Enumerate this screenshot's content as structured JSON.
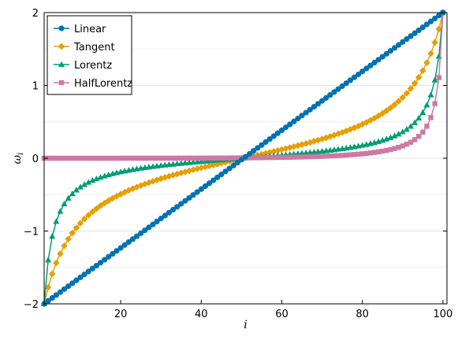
{
  "chart_data": {
    "type": "line",
    "title": "",
    "xlabel": "i",
    "ylabel": "ω",
    "ylabel_subscript": "i",
    "xlim": [
      1,
      101
    ],
    "ylim": [
      -2,
      2
    ],
    "xticks": [
      20,
      40,
      60,
      80,
      100
    ],
    "yticks": [
      -2,
      -1,
      0,
      1,
      2
    ],
    "grid": true,
    "legend_position": "top-left",
    "n_points": 100,
    "series": [
      {
        "name": "Linear",
        "color": "#0072B2",
        "marker": "circle",
        "formula": "linear from -2 to 2"
      },
      {
        "name": "Tangent",
        "color": "#E69F00",
        "marker": "diamond",
        "formula": "tan-spaced from -2 to 2"
      },
      {
        "name": "Lorentz",
        "color": "#009E73",
        "marker": "triangle",
        "formula": "lorentzian-spaced from -2 to 2"
      },
      {
        "name": "HalfLorentz",
        "color": "#CC79A7",
        "marker": "square",
        "formula": "half-lorentzian-spaced up to 2"
      }
    ]
  }
}
